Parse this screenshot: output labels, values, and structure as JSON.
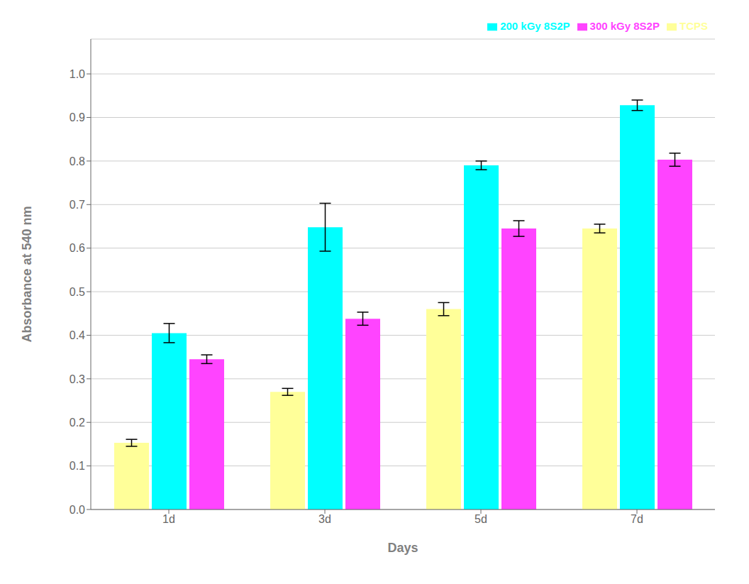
{
  "chart_data": {
    "type": "bar",
    "xlabel": "Days",
    "ylabel": "Absorbance at 540 nm",
    "categories": [
      "1d",
      "3d",
      "5d",
      "7d"
    ],
    "series": [
      {
        "name": "TCPS",
        "color": "#FFFF99",
        "values": [
          0.153,
          0.27,
          0.46,
          0.645
        ],
        "errors": [
          0.008,
          0.008,
          0.015,
          0.01
        ]
      },
      {
        "name": "200 kGy 8S2P",
        "color": "#00FFFF",
        "values": [
          0.405,
          0.648,
          0.79,
          0.928
        ],
        "errors": [
          0.022,
          0.055,
          0.01,
          0.012
        ]
      },
      {
        "name": "300 kGy 8S2P",
        "color": "#FF44FF",
        "values": [
          0.345,
          0.438,
          0.645,
          0.803
        ],
        "errors": [
          0.01,
          0.015,
          0.018,
          0.015
        ]
      }
    ],
    "ylim": [
      0.0,
      1.08
    ],
    "yticks": [
      {
        "value": 0.0,
        "label": "0.0"
      },
      0.1,
      0.2,
      0.3,
      0.4,
      0.5,
      0.6,
      0.7,
      0.8,
      0.9,
      {
        "value": 1.0,
        "label": "1.0"
      }
    ],
    "grid": true,
    "legend": "upper right"
  }
}
